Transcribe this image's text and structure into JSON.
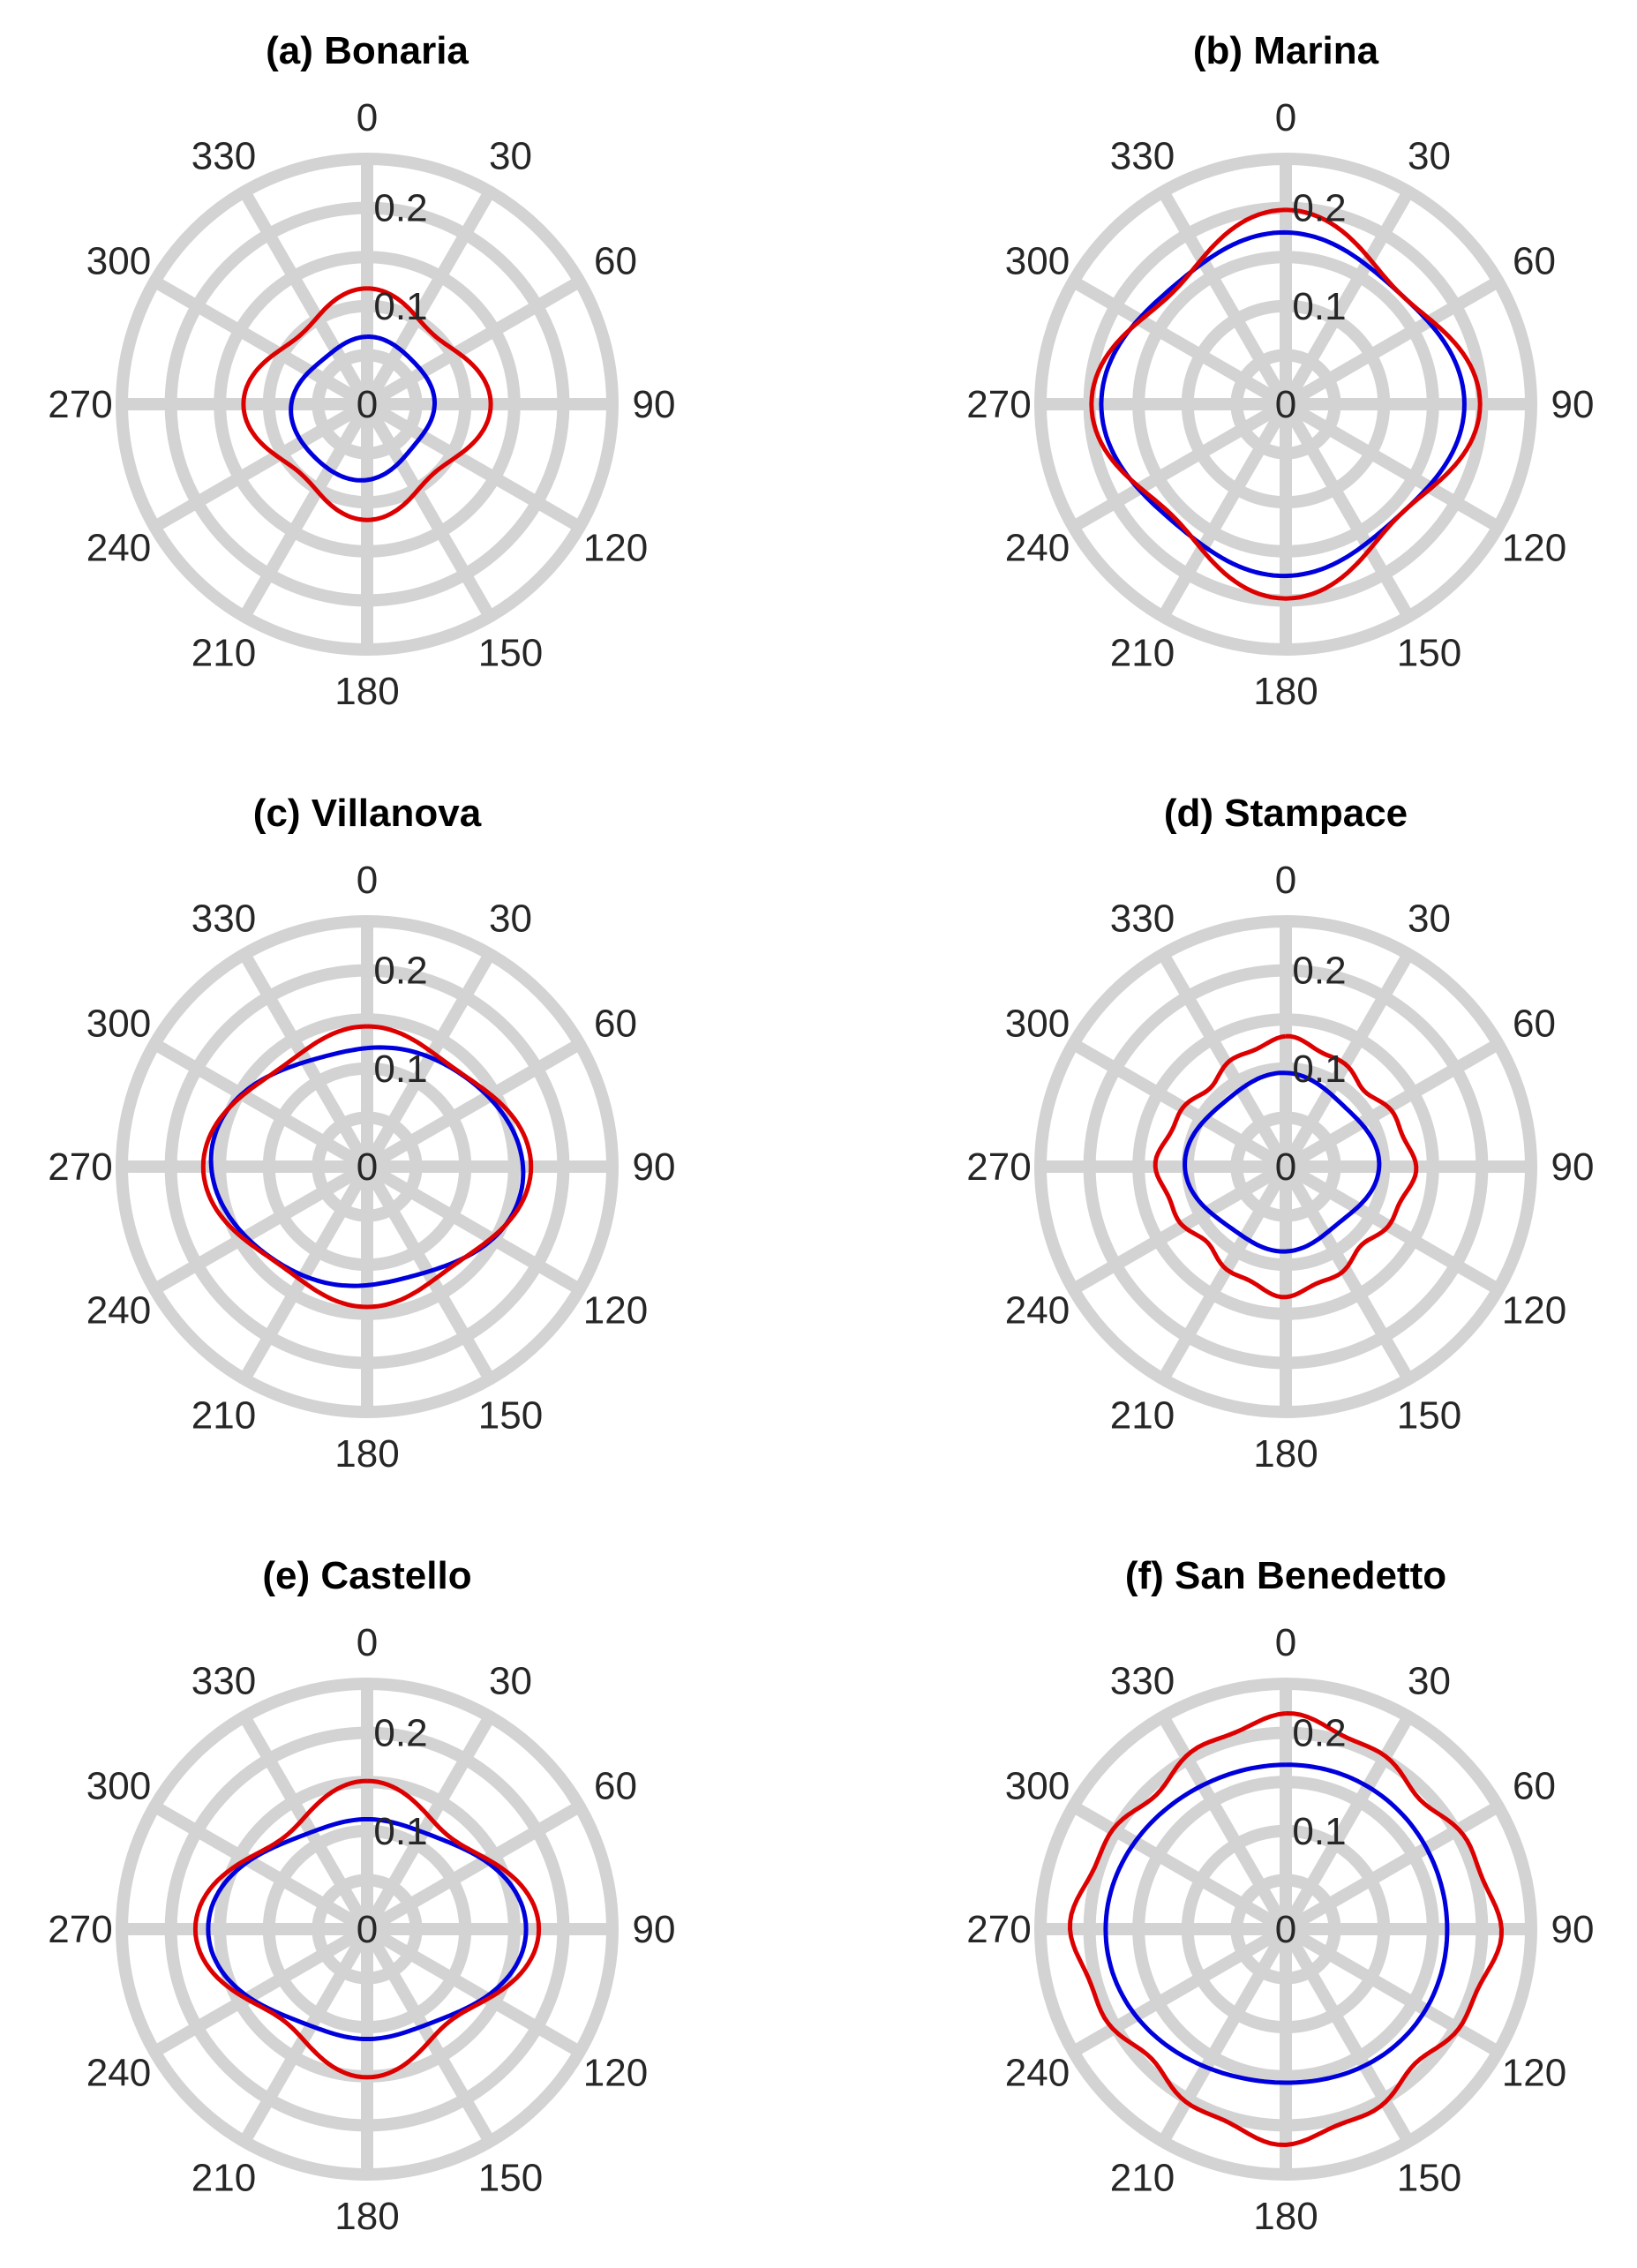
{
  "figure": {
    "panel_count": 6
  },
  "colors": {
    "grid": "#d3d3d3",
    "series1": "#0000dd",
    "series2": "#dd0000",
    "text": "#262626"
  },
  "chart_data": [
    {
      "type": "polar-line",
      "title": "(a) Bonaria",
      "theta_ticks": [
        "0",
        "30",
        "60",
        "90",
        "120",
        "150",
        "180",
        "210",
        "240",
        "270",
        "300",
        "330"
      ],
      "r_ticks": [
        "0",
        "0.1",
        "0.2"
      ],
      "rlim": [
        0,
        0.25
      ],
      "series": [
        {
          "name": "blue",
          "color": "#0000dd",
          "r0": 0.07,
          "harmonics": [
            [
              4,
              0.003,
              0
            ],
            [
              1,
              0.006,
              225
            ],
            [
              2,
              0.003,
              90
            ]
          ]
        },
        {
          "name": "red",
          "color": "#dd0000",
          "r0": 0.11,
          "harmonics": [
            [
              4,
              0.012,
              0
            ],
            [
              2,
              -0.004,
              0
            ]
          ]
        }
      ]
    },
    {
      "type": "polar-line",
      "title": "(b) Marina",
      "theta_ticks": [
        "0",
        "30",
        "60",
        "90",
        "120",
        "150",
        "180",
        "210",
        "240",
        "270",
        "300",
        "330"
      ],
      "r_ticks": [
        "0",
        "0.1",
        "0.2"
      ],
      "rlim": [
        0,
        0.25
      ],
      "series": [
        {
          "name": "blue",
          "color": "#0000dd",
          "r0": 0.172,
          "harmonics": [
            [
              4,
              0.008,
              0
            ],
            [
              2,
              -0.005,
              0
            ],
            [
              1,
              0.003,
              270
            ]
          ]
        },
        {
          "name": "red",
          "color": "#dd0000",
          "r0": 0.18,
          "harmonics": [
            [
              4,
              0.018,
              0
            ]
          ]
        }
      ]
    },
    {
      "type": "polar-line",
      "title": "(c) Villanova",
      "theta_ticks": [
        "0",
        "30",
        "60",
        "90",
        "120",
        "150",
        "180",
        "210",
        "240",
        "270",
        "300",
        "330"
      ],
      "r_ticks": [
        "0",
        "0.1",
        "0.2"
      ],
      "rlim": [
        0,
        0.25
      ],
      "series": [
        {
          "name": "blue",
          "color": "#0000dd",
          "r0": 0.137,
          "harmonics": [
            [
              2,
              -0.019,
              0
            ],
            [
              4,
              0.004,
              45
            ]
          ]
        },
        {
          "name": "red",
          "color": "#dd0000",
          "r0": 0.145,
          "harmonics": [
            [
              4,
              0.01,
              0
            ],
            [
              2,
              -0.012,
              0
            ]
          ]
        }
      ]
    },
    {
      "type": "polar-line",
      "title": "(d) Stampace",
      "theta_ticks": [
        "0",
        "30",
        "60",
        "90",
        "120",
        "150",
        "180",
        "210",
        "240",
        "270",
        "300",
        "330"
      ],
      "r_ticks": [
        "0",
        "0.1",
        "0.2"
      ],
      "rlim": [
        0,
        0.25
      ],
      "series": [
        {
          "name": "blue",
          "color": "#0000dd",
          "r0": 0.09,
          "harmonics": [
            [
              1,
              0.006,
              320
            ],
            [
              2,
              -0.004,
              0
            ],
            [
              4,
              0.005,
              0
            ]
          ]
        },
        {
          "name": "red",
          "color": "#dd0000",
          "r0": 0.122,
          "harmonics": [
            [
              4,
              0.008,
              0
            ],
            [
              12,
              0.003,
              15
            ]
          ]
        }
      ]
    },
    {
      "type": "polar-line",
      "title": "(e) Castello",
      "theta_ticks": [
        "0",
        "30",
        "60",
        "90",
        "120",
        "150",
        "180",
        "210",
        "240",
        "270",
        "300",
        "330"
      ],
      "r_ticks": [
        "0",
        "0.1",
        "0.2"
      ],
      "rlim": [
        0,
        0.25
      ],
      "series": [
        {
          "name": "blue",
          "color": "#0000dd",
          "r0": 0.13,
          "harmonics": [
            [
              2,
              -0.025,
              0
            ],
            [
              4,
              0.007,
              0
            ]
          ]
        },
        {
          "name": "red",
          "color": "#dd0000",
          "r0": 0.145,
          "harmonics": [
            [
              2,
              -0.012,
              0
            ],
            [
              4,
              0.018,
              0
            ]
          ]
        }
      ]
    },
    {
      "type": "polar-line",
      "title": "(f) San Benedetto",
      "theta_ticks": [
        "0",
        "30",
        "60",
        "90",
        "120",
        "150",
        "180",
        "210",
        "240",
        "270",
        "300",
        "330"
      ],
      "r_ticks": [
        "0",
        "0.1",
        "0.2"
      ],
      "rlim": [
        0,
        0.25
      ],
      "series": [
        {
          "name": "blue",
          "color": "#0000dd",
          "r0": 0.168,
          "harmonics": [
            [
              1,
              0.008,
              300
            ],
            [
              2,
              -0.006,
              0
            ],
            [
              3,
              0.003,
              60
            ]
          ]
        },
        {
          "name": "red",
          "color": "#dd0000",
          "r0": 0.205,
          "harmonics": [
            [
              4,
              0.011,
              0
            ],
            [
              12,
              0.004,
              15
            ]
          ]
        }
      ]
    }
  ]
}
